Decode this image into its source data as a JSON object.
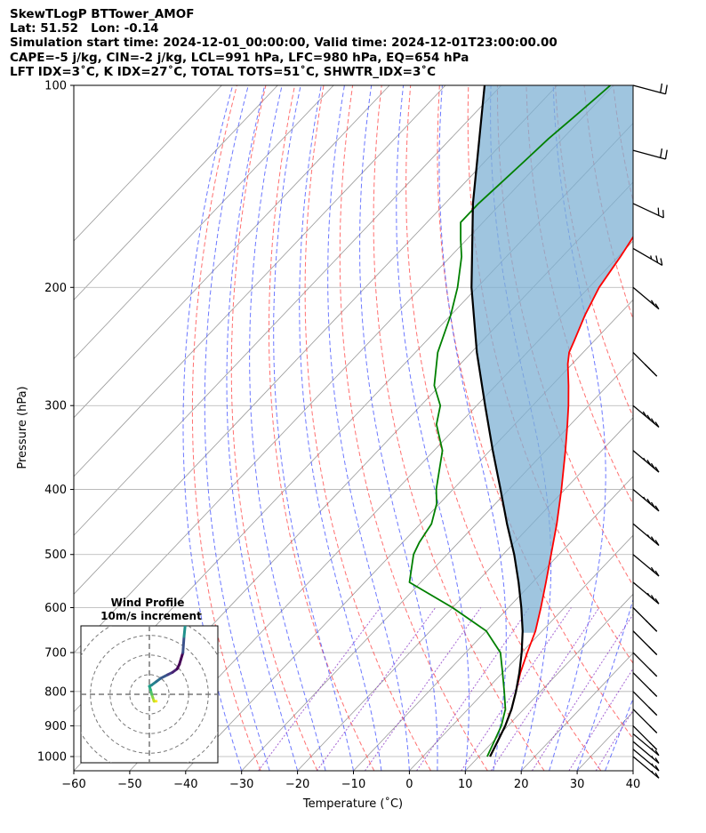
{
  "header": {
    "line1": "SkewTLogP BTTower_AMOF",
    "line2": "Lat: 51.52   Lon: -0.14",
    "line3": "Simulation start time: 2024-12-01_00:00:00, Valid time: 2024-12-01T23:00:00.00",
    "line4": "CAPE=-5 j/kg, CIN=-2 j/kg, LCL=991 hPa, LFC=980 hPa, EQ=654 hPa",
    "line5": "LFT IDX=3˚C, K IDX=27˚C, TOTAL TOTS=51˚C, SHWTR_IDX=3˚C"
  },
  "hodograph": {
    "title": "Wind Profile",
    "subtitle": "10m/s increment"
  },
  "chart_data": {
    "type": "line",
    "xlabel": "Temperature (˚C)",
    "ylabel": "Pressure (hPa)",
    "xlim": [
      -60,
      40
    ],
    "ylim": [
      1050,
      100
    ],
    "y_scale": "log",
    "skew": true,
    "grid": true,
    "x_ticks": [
      -60,
      -50,
      -40,
      -30,
      -20,
      -10,
      0,
      10,
      20,
      30,
      40
    ],
    "y_ticks": [
      100,
      200,
      300,
      400,
      500,
      600,
      700,
      800,
      900,
      1000
    ],
    "colors": {
      "temperature": "#ff0000",
      "dewpoint": "#008000",
      "parcel": "#000000",
      "cape_fill": "#7fb1d4",
      "dry_adiabat": "#ff4040",
      "moist_adiabat": "#3b4bff",
      "mixing_ratio": "#8f3fc8",
      "isotherm": "#999999"
    },
    "series": [
      {
        "key": "temperature",
        "pressure": [
          1000,
          950,
          900,
          850,
          800,
          750,
          700,
          650,
          600,
          550,
          500,
          450,
          400,
          350,
          320,
          300,
          280,
          260,
          250,
          240,
          220,
          200,
          180,
          170,
          160,
          150,
          140,
          130,
          120,
          110,
          100
        ],
        "temp": [
          12.0,
          10.8,
          9.5,
          7.8,
          5.6,
          3.2,
          1.0,
          -1.2,
          -4.2,
          -7.6,
          -11.4,
          -15.6,
          -20.6,
          -26.5,
          -30.6,
          -33.6,
          -37.0,
          -40.8,
          -42.5,
          -43.6,
          -46.0,
          -48.2,
          -49.6,
          -50.5,
          -51.5,
          -53.0,
          -54.5,
          -56.3,
          -57.5,
          -57.0,
          -57.0
        ]
      },
      {
        "key": "dewpoint",
        "pressure": [
          1000,
          950,
          900,
          850,
          800,
          750,
          700,
          650,
          600,
          550,
          500,
          480,
          450,
          420,
          400,
          350,
          320,
          300,
          280,
          250,
          220,
          200,
          180,
          170,
          160,
          150,
          140,
          130,
          120,
          110,
          100
        ],
        "temp": [
          11.5,
          10.2,
          8.8,
          6.7,
          3.5,
          0.0,
          -3.8,
          -10.0,
          -20.0,
          -32.0,
          -36.0,
          -37.0,
          -38.0,
          -40.5,
          -43.0,
          -48.5,
          -54.0,
          -56.5,
          -61.0,
          -66.0,
          -70.0,
          -73.5,
          -78.0,
          -81.0,
          -84.0,
          -84.0,
          -83.5,
          -83.0,
          -82.5,
          -81.5,
          -80.5
        ]
      },
      {
        "key": "parcel",
        "pressure": [
          1000,
          950,
          900,
          850,
          800,
          750,
          700,
          650,
          600,
          550,
          500,
          450,
          400,
          350,
          300,
          250,
          200,
          150,
          100
        ],
        "temp": [
          12.0,
          10.8,
          9.5,
          7.8,
          5.6,
          3.0,
          0.0,
          -3.5,
          -7.7,
          -12.5,
          -18.0,
          -24.5,
          -31.5,
          -39.5,
          -48.5,
          -59.0,
          -71.0,
          -85.0,
          -103.0
        ]
      }
    ],
    "hodograph_profile": {
      "u_ms": [
        -3,
        -2,
        -1.5,
        -1,
        -0.5,
        0,
        -1,
        -3,
        -5,
        -8,
        -10,
        -12,
        -13,
        -14.5,
        -15,
        -15.5
      ],
      "v_ms": [
        -3,
        -3,
        -1.5,
        0,
        2,
        3.5,
        4,
        5.5,
        7,
        8.5,
        9.5,
        11,
        13,
        18,
        25,
        30
      ]
    },
    "wind_barbs": {
      "pressure": [
        1000,
        975,
        950,
        925,
        900,
        850,
        800,
        750,
        700,
        650,
        600,
        550,
        500,
        450,
        400,
        350,
        300,
        250,
        200,
        175,
        150,
        125,
        100
      ],
      "speed_kt": [
        15,
        15,
        15,
        15,
        15,
        15,
        20,
        15,
        15,
        20,
        25,
        25,
        20,
        25,
        35,
        35,
        40,
        30,
        20,
        25,
        20,
        20,
        20
      ],
      "direction_deg": [
        230,
        230,
        230,
        230,
        225,
        225,
        225,
        225,
        225,
        225,
        225,
        230,
        230,
        230,
        230,
        230,
        230,
        225,
        230,
        240,
        245,
        255,
        255
      ]
    }
  }
}
